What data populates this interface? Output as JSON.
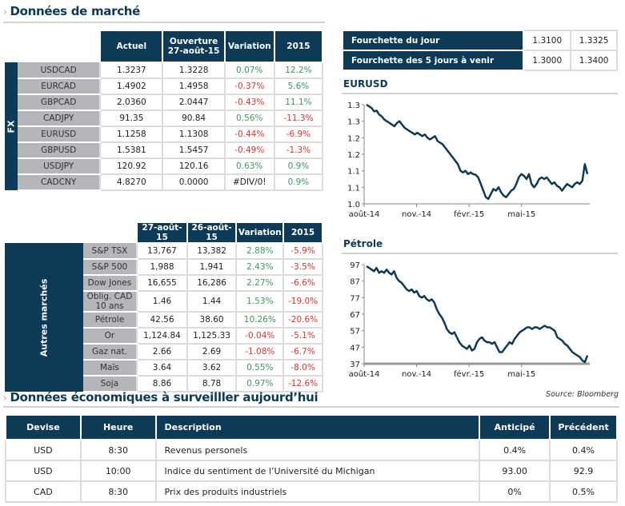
{
  "colors": {
    "navy": "#0d3a57",
    "positive": "#3a9a5b",
    "negative": "#e8302b",
    "label_bg": "#b5b6b9"
  },
  "market": {
    "title": "Données de marché",
    "fx": {
      "side_label": "FX",
      "headers": [
        "Actuel",
        "Ouverture\n27-août-15",
        "Variation",
        "2015"
      ],
      "header_open_line1": "Ouverture",
      "header_open_line2": "27-août-15",
      "rows": [
        {
          "name": "USDCAD",
          "current": "1.3237",
          "open": "1.3228",
          "change": "0.07%",
          "ytd": "12.2%"
        },
        {
          "name": "EURCAD",
          "current": "1.4902",
          "open": "1.4958",
          "change": "-0.37%",
          "ytd": "5.6%"
        },
        {
          "name": "GBPCAD",
          "current": "2.0360",
          "open": "2.0447",
          "change": "-0.43%",
          "ytd": "11.1%"
        },
        {
          "name": "CADJPY",
          "current": "91.35",
          "open": "90.84",
          "change": "0.56%",
          "ytd": "-11.3%"
        },
        {
          "name": "EURUSD",
          "current": "1.1258",
          "open": "1.1308",
          "change": "-0.44%",
          "ytd": "-6.9%"
        },
        {
          "name": "GBPUSD",
          "current": "1.5381",
          "open": "1.5457",
          "change": "-0.49%",
          "ytd": "-1.3%"
        },
        {
          "name": "USDJPY",
          "current": "120.92",
          "open": "120.16",
          "change": "0.63%",
          "ytd": "0.9%"
        },
        {
          "name": "CADCNY",
          "current": "4.8270",
          "open": "0.0000",
          "change": "#DIV/0!",
          "ytd": "0.9%"
        }
      ]
    },
    "other": {
      "side_label": "Autres marchés",
      "headers": [
        "27-août-15",
        "26-août-15",
        "Variation",
        "2015"
      ],
      "rows": [
        {
          "name": "S&P TSX",
          "current": "13,767",
          "prev": "13,382",
          "change": "2.88%",
          "ytd": "-5.9%"
        },
        {
          "name": "S&P 500",
          "current": "1,988",
          "prev": "1,941",
          "change": "2.43%",
          "ytd": "-3.5%"
        },
        {
          "name": "Dow Jones",
          "current": "16,655",
          "prev": "16,286",
          "change": "2.27%",
          "ytd": "-6.6%"
        },
        {
          "name": "Oblig. CAD 10 ans",
          "current": "1.46",
          "prev": "1.44",
          "change": "1.53%",
          "ytd": "-19.0%"
        },
        {
          "name": "Pétrole",
          "current": "42.56",
          "prev": "38.60",
          "change": "10.26%",
          "ytd": "-20.6%"
        },
        {
          "name": "Or",
          "current": "1,124.84",
          "prev": "1,125.33",
          "change": "-0.04%",
          "ytd": "-5.1%"
        },
        {
          "name": "Gaz nat.",
          "current": "2.66",
          "prev": "2.69",
          "change": "-1.08%",
          "ytd": "-6.7%"
        },
        {
          "name": "Maïs",
          "current": "3.64",
          "prev": "3.62",
          "change": "0.55%",
          "ytd": "-8.0%"
        },
        {
          "name": "Soja",
          "current": "8.86",
          "prev": "8.78",
          "change": "0.97%",
          "ytd": "-12.6%"
        }
      ]
    }
  },
  "ranges": [
    {
      "label": "Fourchette du jour",
      "low": "1.3100",
      "high": "1.3325"
    },
    {
      "label": "Fourchette des 5 jours à venir",
      "low": "1.3000",
      "high": "1.3400"
    }
  ],
  "chart_data": [
    {
      "type": "line",
      "title": "EURUSD",
      "x_tick_labels": [
        "août-14",
        "nov.-14",
        "févr.-15",
        "mai-15"
      ],
      "x_range": [
        "août-14",
        "août-15"
      ],
      "y_tick_labels": [
        "1.0",
        "1.1",
        "1.1",
        "1.2",
        "1.2",
        "1.3",
        "1.3"
      ],
      "ylim": [
        1.04,
        1.34
      ],
      "grid": false,
      "values": [
        1.34,
        1.335,
        1.33,
        1.32,
        1.322,
        1.31,
        1.305,
        1.295,
        1.29,
        1.285,
        1.28,
        1.275,
        1.285,
        1.29,
        1.28,
        1.27,
        1.265,
        1.26,
        1.255,
        1.25,
        1.255,
        1.25,
        1.245,
        1.25,
        1.24,
        1.235,
        1.24,
        1.245,
        1.23,
        1.225,
        1.22,
        1.21,
        1.2,
        1.19,
        1.18,
        1.17,
        1.16,
        1.14,
        1.135,
        1.14,
        1.13,
        1.135,
        1.13,
        1.128,
        1.12,
        1.1,
        1.08,
        1.06,
        1.055,
        1.07,
        1.085,
        1.08,
        1.09,
        1.075,
        1.065,
        1.06,
        1.07,
        1.08,
        1.085,
        1.1,
        1.12,
        1.13,
        1.125,
        1.115,
        1.13,
        1.1,
        1.09,
        1.1,
        1.115,
        1.12,
        1.115,
        1.12,
        1.11,
        1.1,
        1.105,
        1.095,
        1.09,
        1.08,
        1.09,
        1.1,
        1.095,
        1.09,
        1.1,
        1.105,
        1.1,
        1.11,
        1.16,
        1.13
      ]
    },
    {
      "type": "line",
      "title": "Pétrole",
      "x_tick_labels": [
        "août-14",
        "nov.-14",
        "févr.-15",
        "mai-15"
      ],
      "x_range": [
        "août-14",
        "août-15"
      ],
      "y_tick_labels": [
        "37",
        "47",
        "57",
        "67",
        "77",
        "87",
        "97"
      ],
      "ylim": [
        37,
        97
      ],
      "grid": false,
      "values": [
        96,
        95,
        94,
        93,
        95,
        92,
        93,
        92,
        94,
        92,
        91,
        93,
        89,
        87,
        86,
        84,
        82,
        81,
        82,
        80,
        81,
        78,
        77,
        78,
        76,
        75,
        76,
        74,
        70,
        67,
        65,
        62,
        58,
        56,
        55,
        56,
        53,
        50,
        48,
        47,
        46,
        48,
        45,
        46,
        50,
        52,
        53,
        51,
        50,
        50,
        49,
        50,
        47,
        44,
        44,
        46,
        48,
        50,
        49,
        52,
        54,
        56,
        57,
        58,
        59,
        59,
        58,
        59,
        59,
        58,
        59,
        60,
        59,
        59,
        58,
        57,
        53,
        52,
        51,
        49,
        48,
        46,
        44,
        43,
        42,
        41,
        39,
        38,
        42
      ]
    }
  ],
  "economic": {
    "title": "Données économiques à surveilller aujourd’hui",
    "source": "Source: Bloomberg",
    "headers": {
      "currency": "Devise",
      "time": "Heure",
      "description": "Description",
      "expected": "Anticipé",
      "previous": "Précédent"
    },
    "rows": [
      {
        "currency": "USD",
        "time": "8:30",
        "description": "Revenus personels",
        "expected": "0.4%",
        "previous": "0.4%"
      },
      {
        "currency": "USD",
        "time": "10:00",
        "description": "Indice du sentiment de l’Université du Michigan",
        "expected": "93.00",
        "previous": "92.9"
      },
      {
        "currency": "CAD",
        "time": "8:30",
        "description": "Prix des produits industriels",
        "expected": "0%",
        "previous": "0.5%"
      }
    ]
  }
}
